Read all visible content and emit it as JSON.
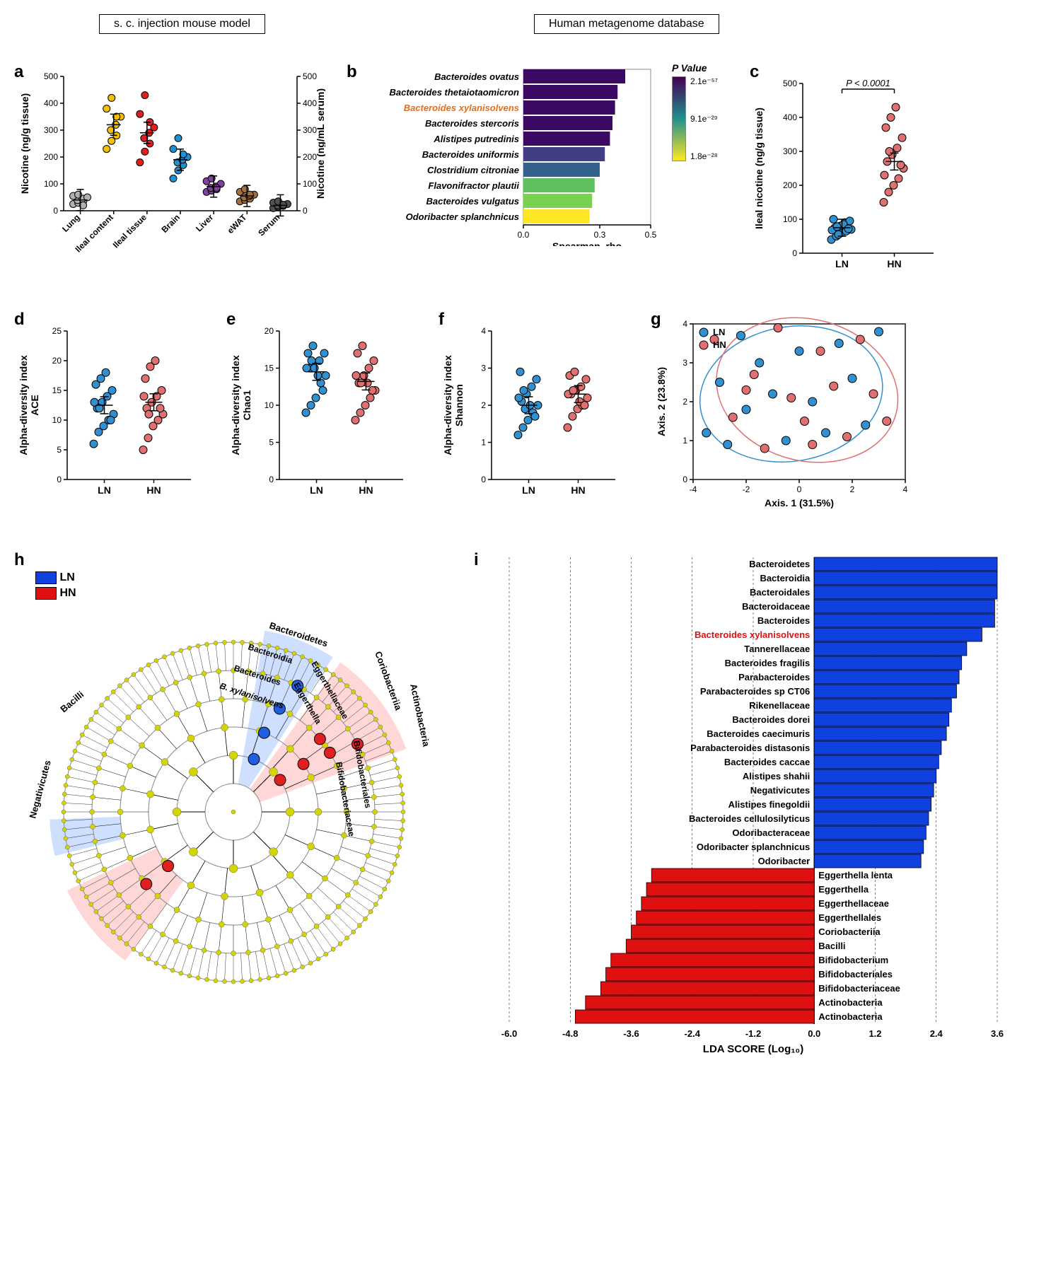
{
  "headers": {
    "left": "s. c. injection mouse model",
    "right": "Human metagenome database"
  },
  "panel_a": {
    "label": "a",
    "ylabel_left": "Nicotine (ng/g tissue)",
    "ylabel_right": "Nicotine (ng/mL serum)",
    "ylim": [
      0,
      500
    ],
    "ytick_step": 100,
    "categories": [
      "Lung",
      "Ileal content",
      "Ileal tissue",
      "Brain",
      "Liver",
      "eWAT",
      "Serum"
    ],
    "colors": [
      "#b0b0b0",
      "#f5c000",
      "#e02020",
      "#2090d0",
      "#8040a0",
      "#a07040",
      "#505050"
    ],
    "means": [
      40,
      320,
      290,
      190,
      90,
      55,
      20
    ],
    "points": [
      [
        25,
        30,
        35,
        40,
        45,
        50,
        55,
        60,
        20
      ],
      [
        230,
        260,
        280,
        300,
        320,
        350,
        380,
        420,
        350
      ],
      [
        180,
        220,
        250,
        270,
        290,
        310,
        360,
        430,
        330
      ],
      [
        120,
        150,
        170,
        180,
        190,
        200,
        230,
        270,
        210
      ],
      [
        70,
        75,
        80,
        85,
        90,
        100,
        110,
        120,
        85
      ],
      [
        35,
        40,
        45,
        50,
        55,
        60,
        70,
        80,
        60
      ],
      [
        10,
        15,
        18,
        20,
        22,
        25,
        30,
        35,
        22
      ]
    ]
  },
  "panel_b": {
    "label": "b",
    "species": [
      "Bacteroides ovatus",
      "Bacteroides thetaiotaomicron",
      "Bacteroides xylanisolvens",
      "Bacteroides stercoris",
      "Alistipes putredinis",
      "Bacteroides uniformis",
      "Clostridium citroniae",
      "Flavonifractor plautii",
      "Bacteroides vulgatus",
      "Odoribacter splanchnicus"
    ],
    "highlight_index": 2,
    "highlight_color": "#e07020",
    "values": [
      0.4,
      0.37,
      0.36,
      0.35,
      0.34,
      0.32,
      0.3,
      0.28,
      0.27,
      0.26
    ],
    "colors": [
      "#3b0963",
      "#3b0963",
      "#3b0963",
      "#3b0963",
      "#3b0963",
      "#423e85",
      "#33638d",
      "#60c060",
      "#7ad151",
      "#fde725"
    ],
    "xlabel": "Spearman_rho",
    "xlim": [
      0,
      0.5
    ],
    "xticks": [
      0.0,
      0.3,
      0.5
    ],
    "colorbar": {
      "title": "P Value",
      "labels": [
        "2.1e⁻⁵⁷",
        "9.1e⁻²⁹",
        "1.8e⁻²⁸"
      ]
    }
  },
  "panel_c": {
    "label": "c",
    "ylabel": "Ileal nicotine (ng/g tissue)",
    "ylim": [
      0,
      500
    ],
    "ytick_step": 100,
    "groups": [
      "LN",
      "HN"
    ],
    "colors": [
      "#3090d0",
      "#e07070"
    ],
    "means": [
      75,
      270
    ],
    "annotation": "P < 0.0001",
    "points": [
      [
        40,
        50,
        60,
        65,
        70,
        75,
        80,
        90,
        95,
        100,
        55,
        85,
        72,
        68,
        78
      ],
      [
        150,
        180,
        200,
        220,
        250,
        270,
        290,
        310,
        340,
        370,
        400,
        430,
        260,
        230,
        300
      ]
    ]
  },
  "panel_d": {
    "label": "d",
    "ylabel": "Alpha-diversity index\nACE",
    "ylim": [
      0,
      25
    ],
    "ytick_step": 5,
    "groups": [
      "LN",
      "HN"
    ],
    "colors": [
      "#3090d0",
      "#e07070"
    ],
    "means": [
      12.5,
      13
    ],
    "points": [
      [
        6,
        8,
        9,
        10,
        11,
        12,
        13,
        14,
        15,
        16,
        17,
        18,
        10,
        13,
        12
      ],
      [
        5,
        7,
        9,
        10,
        11,
        12,
        13,
        14,
        15,
        17,
        19,
        20,
        12,
        14,
        11
      ]
    ]
  },
  "panel_e": {
    "label": "e",
    "ylabel": "Alpha-diversity index\nChao1",
    "ylim": [
      0,
      20
    ],
    "ytick_step": 5,
    "groups": [
      "LN",
      "HN"
    ],
    "colors": [
      "#3090d0",
      "#e07070"
    ],
    "means": [
      14.5,
      13.2
    ],
    "points": [
      [
        9,
        10,
        11,
        13,
        14,
        15,
        15,
        16,
        17,
        17,
        18,
        14,
        12,
        15,
        16
      ],
      [
        8,
        9,
        10,
        11,
        12,
        13,
        14,
        15,
        16,
        17,
        18,
        13,
        12,
        14,
        13
      ]
    ]
  },
  "panel_f": {
    "label": "f",
    "ylabel": "Alpha-diversity index\nShannon",
    "ylim": [
      0,
      4
    ],
    "ytick_step": 1,
    "groups": [
      "LN",
      "HN"
    ],
    "colors": [
      "#3090d0",
      "#e07070"
    ],
    "means": [
      2.0,
      2.3
    ],
    "points": [
      [
        1.2,
        1.4,
        1.6,
        1.8,
        2.0,
        2.1,
        2.3,
        2.5,
        2.7,
        2.9,
        1.9,
        2.0,
        1.7,
        2.2,
        2.4
      ],
      [
        1.4,
        1.7,
        1.9,
        2.0,
        2.2,
        2.3,
        2.4,
        2.5,
        2.7,
        2.8,
        2.9,
        2.1,
        2.0,
        2.3,
        2.4
      ]
    ]
  },
  "panel_g": {
    "label": "g",
    "xlabel": "Axis. 1 (31.5%)",
    "ylabel": "Axis. 2 (23.8%)",
    "xlim": [
      -4,
      4
    ],
    "ylim": [
      0,
      4
    ],
    "xtick_step": 2,
    "ytick_step": 1,
    "legend": [
      "LN",
      "HN"
    ],
    "colors": [
      "#3090d0",
      "#e07070"
    ],
    "ln_points": [
      [
        -3.5,
        1.2
      ],
      [
        -3,
        2.5
      ],
      [
        -2.7,
        0.9
      ],
      [
        -2.2,
        3.7
      ],
      [
        -2,
        1.8
      ],
      [
        -1.5,
        3.0
      ],
      [
        -1,
        2.2
      ],
      [
        -0.5,
        1.0
      ],
      [
        0,
        3.3
      ],
      [
        0.5,
        2.0
      ],
      [
        1,
        1.2
      ],
      [
        1.5,
        3.5
      ],
      [
        2,
        2.6
      ],
      [
        2.5,
        1.4
      ],
      [
        3,
        3.8
      ]
    ],
    "hn_points": [
      [
        -3.2,
        3.6
      ],
      [
        -2.5,
        1.6
      ],
      [
        -2,
        2.3
      ],
      [
        -1.3,
        0.8
      ],
      [
        -0.8,
        3.9
      ],
      [
        -0.3,
        2.1
      ],
      [
        0.2,
        1.5
      ],
      [
        0.8,
        3.3
      ],
      [
        1.3,
        2.4
      ],
      [
        1.8,
        1.1
      ],
      [
        2.3,
        3.6
      ],
      [
        2.8,
        2.2
      ],
      [
        3.3,
        1.5
      ],
      [
        -1.7,
        2.7
      ],
      [
        0.5,
        0.9
      ]
    ]
  },
  "panel_h": {
    "label": "h",
    "legend": {
      "LN": "#1040e0",
      "HN": "#e01010"
    },
    "labels": [
      "Bacilli",
      "Negativicutes",
      "Bacteroidetes",
      "Bacteroidia",
      "Bacteroides",
      "B. xylanisolvens",
      "Eggerthellaceae",
      "Eggerthella",
      "Coriobacteriia",
      "Actinobacteria",
      "Bifidobacteriales",
      "Bifidobacteriaceae"
    ]
  },
  "panel_i": {
    "label": "i",
    "xlabel": "LDA SCORE (Log₁₀)",
    "xlim": [
      -6.0,
      3.6
    ],
    "xticks": [
      -6.0,
      -4.8,
      -3.6,
      -2.4,
      -1.2,
      0,
      1.2,
      2.4,
      3.6
    ],
    "blue_items": [
      {
        "name": "Bacteroidetes",
        "v": 3.6
      },
      {
        "name": "Bacteroidia",
        "v": 3.6
      },
      {
        "name": "Bacteroidales",
        "v": 3.6
      },
      {
        "name": "Bacteroidaceae",
        "v": 3.55
      },
      {
        "name": "Bacteroides",
        "v": 3.55
      },
      {
        "name": "Bacteroides xylanisolvens",
        "v": 3.3,
        "highlight": true
      },
      {
        "name": "Tannerellaceae",
        "v": 3.0
      },
      {
        "name": "Bacteroides fragilis",
        "v": 2.9
      },
      {
        "name": "Parabacteroides",
        "v": 2.85
      },
      {
        "name": "Parabacteroides sp CT06",
        "v": 2.8
      },
      {
        "name": "Rikenellaceae",
        "v": 2.7
      },
      {
        "name": "Bacteroides dorei",
        "v": 2.65
      },
      {
        "name": "Bacteroides caecimuris",
        "v": 2.6
      },
      {
        "name": "Parabacteroides distasonis",
        "v": 2.5
      },
      {
        "name": "Bacteroides caccae",
        "v": 2.45
      },
      {
        "name": "Alistipes shahii",
        "v": 2.4
      },
      {
        "name": "Negativicutes",
        "v": 2.35
      },
      {
        "name": "Alistipes finegoldii",
        "v": 2.3
      },
      {
        "name": "Bacteroides cellulosilyticus",
        "v": 2.25
      },
      {
        "name": "Odoribacteraceae",
        "v": 2.2
      },
      {
        "name": "Odoribacter splanchnicus",
        "v": 2.15
      },
      {
        "name": "Odoribacter",
        "v": 2.1
      }
    ],
    "red_items": [
      {
        "name": "Eggerthella lenta",
        "v": -3.2
      },
      {
        "name": "Eggerthella",
        "v": -3.3
      },
      {
        "name": "Eggerthellaceae",
        "v": -3.4
      },
      {
        "name": "Eggerthellales",
        "v": -3.5
      },
      {
        "name": "Coriobacteriia",
        "v": -3.6
      },
      {
        "name": "Bacilli",
        "v": -3.7
      },
      {
        "name": "Bifidobacterium",
        "v": -4.0
      },
      {
        "name": "Bifidobacteriales",
        "v": -4.1
      },
      {
        "name": "Bifidobacteriaceae",
        "v": -4.2
      },
      {
        "name": "Actinobacteria",
        "v": -4.5
      },
      {
        "name": "Actinobacteria",
        "v": -4.7
      }
    ]
  }
}
